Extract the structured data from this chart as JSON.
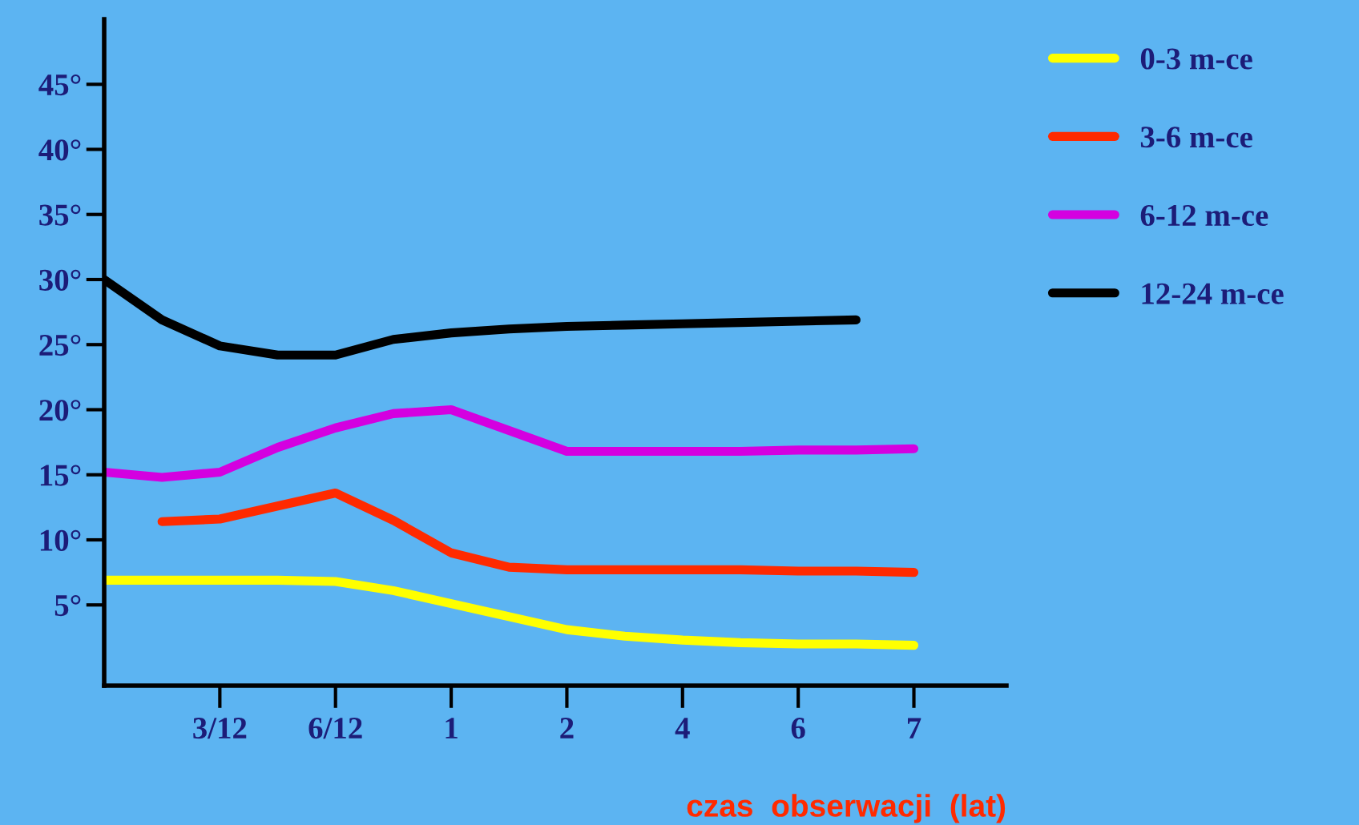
{
  "chart_data": {
    "type": "line",
    "xlabel": "czas  obserwacji  (lat)",
    "categories": [
      null,
      null,
      "3/12",
      null,
      "6/12",
      null,
      "1",
      null,
      "2",
      null,
      "4",
      null,
      "6",
      null,
      "7",
      null
    ],
    "ylim": [
      -1.2,
      50
    ],
    "yticks": [
      {
        "value": 5,
        "label": "5°"
      },
      {
        "value": 10,
        "label": "10°"
      },
      {
        "value": 15,
        "label": "15°"
      },
      {
        "value": 20,
        "label": "20°"
      },
      {
        "value": 25,
        "label": "25°"
      },
      {
        "value": 30,
        "label": "30°"
      },
      {
        "value": 35,
        "label": "35°"
      },
      {
        "value": 40,
        "label": "40°"
      },
      {
        "value": 45,
        "label": "45°"
      }
    ],
    "grid": false,
    "legend": "right",
    "marker": "none",
    "line_style": "solid",
    "series": [
      {
        "name": "0-3 m-ce",
        "color": "#ffff00",
        "values": [
          6.9,
          6.9,
          6.9,
          6.9,
          6.8,
          6.1,
          5.1,
          4.1,
          3.1,
          2.6,
          2.3,
          2.1,
          2.0,
          2.0,
          1.9,
          null
        ]
      },
      {
        "name": "3-6 m-ce",
        "color": "#ff2a00",
        "values": [
          null,
          11.4,
          11.6,
          12.6,
          13.6,
          11.5,
          9.0,
          7.9,
          7.7,
          7.7,
          7.7,
          7.7,
          7.6,
          7.6,
          7.5,
          null
        ]
      },
      {
        "name": "6-12 m-ce",
        "color": "#d400e0",
        "values": [
          15.2,
          14.8,
          15.2,
          17.1,
          18.6,
          19.7,
          20.0,
          18.4,
          16.8,
          16.8,
          16.8,
          16.8,
          16.9,
          16.9,
          17.0,
          null
        ]
      },
      {
        "name": "12-24 m-ce",
        "color": "#000000",
        "values": [
          30,
          26.9,
          24.9,
          24.2,
          24.2,
          25.4,
          25.9,
          26.2,
          26.4,
          26.5,
          26.6,
          26.7,
          26.8,
          26.9,
          null,
          null
        ]
      }
    ]
  }
}
